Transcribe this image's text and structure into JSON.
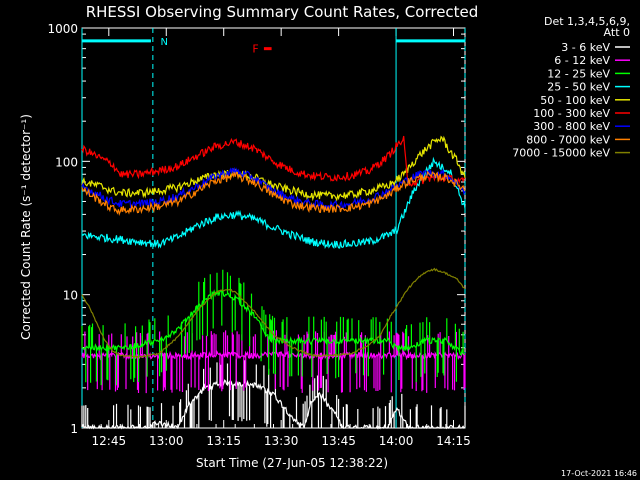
{
  "chart_data": {
    "type": "line",
    "title": "RHESSI Observing Summary Count Rates, Corrected",
    "xlabel": "Start Time (27-Jun-05 12:38:22)",
    "ylabel": "Corrected Count Rate (s⁻¹ detector⁻¹)",
    "yscale": "log",
    "xlim_minutes_after_1238": [
      0,
      100
    ],
    "ylim": [
      1,
      1000
    ],
    "x_ticks": [
      {
        "label": "12:45",
        "minute": 7
      },
      {
        "label": "13:00",
        "minute": 22
      },
      {
        "label": "13:15",
        "minute": 37
      },
      {
        "label": "13:30",
        "minute": 52
      },
      {
        "label": "13:45",
        "minute": 67
      },
      {
        "label": "14:00",
        "minute": 82
      },
      {
        "label": "14:15",
        "minute": 97
      }
    ],
    "y_ticks": [
      {
        "label": "1",
        "value": 1
      },
      {
        "label": "10",
        "value": 10
      },
      {
        "label": "100",
        "value": 100
      },
      {
        "label": "1000",
        "value": 1000
      }
    ],
    "legend_header": [
      "Det 1,3,4,5,6,9,",
      "Att 0"
    ],
    "annotations": [
      {
        "text": "N",
        "color": "#00ffff"
      },
      {
        "text": "F",
        "color": "#ff0000"
      }
    ],
    "series": [
      {
        "name": "3 - 6 keV",
        "color": "#ffffff",
        "style": "spiky",
        "x": [
          0,
          15,
          17,
          20,
          25,
          28,
          32,
          38,
          45,
          50,
          55,
          58,
          60,
          62,
          64,
          66,
          68,
          70,
          76,
          80,
          82,
          84,
          85,
          90,
          95,
          100
        ],
        "y": [
          1,
          1,
          1,
          1.1,
          1,
          1.5,
          2,
          2.2,
          2.1,
          1.8,
          1.2,
          1,
          1.6,
          1.8,
          1.5,
          1.3,
          1,
          1,
          1,
          1,
          1.4,
          1.2,
          1,
          1,
          1,
          1
        ]
      },
      {
        "name": "6 - 12 keV",
        "color": "#ff00ff",
        "style": "spiky",
        "x": [
          0,
          10,
          14,
          15,
          20,
          25,
          30,
          35,
          40,
          45,
          50,
          55,
          60,
          65,
          70,
          75,
          80,
          83,
          85,
          90,
          95,
          100
        ],
        "y": [
          3.5,
          3.5,
          3.5,
          3.4,
          3.5,
          3.5,
          3.5,
          3.6,
          3.5,
          3.5,
          3.6,
          3.5,
          3.5,
          3.5,
          3.5,
          3.5,
          3.5,
          3.5,
          3.5,
          3.5,
          3.5,
          3.5
        ]
      },
      {
        "name": "12 - 25 keV",
        "color": "#00ff00",
        "style": "spiky",
        "x": [
          0,
          5,
          10,
          15,
          20,
          25,
          30,
          35,
          40,
          45,
          48,
          50,
          55,
          60,
          65,
          70,
          75,
          80,
          82,
          85,
          90,
          95,
          100
        ],
        "y": [
          4,
          4,
          4,
          4.2,
          4.5,
          5.5,
          8,
          10.5,
          9.5,
          7,
          5,
          4.5,
          4.5,
          4.5,
          4.5,
          4.5,
          4.5,
          4.5,
          4,
          4,
          4.5,
          4.5,
          3.5
        ]
      },
      {
        "name": "25 - 50 keV",
        "color": "#00ffff",
        "style": "noisy",
        "x": [
          0,
          5,
          10,
          15,
          20,
          25,
          30,
          35,
          40,
          45,
          50,
          55,
          60,
          65,
          70,
          75,
          80,
          82,
          84,
          86,
          88,
          90,
          92,
          94,
          96,
          100
        ],
        "y": [
          28,
          27,
          26,
          25,
          24,
          27,
          33,
          38,
          40,
          37,
          32,
          28,
          25,
          24,
          24,
          25,
          28,
          30,
          40,
          55,
          70,
          85,
          100,
          90,
          85,
          45
        ]
      },
      {
        "name": "50 - 100 keV",
        "color": "#e6e600",
        "style": "noisy",
        "x": [
          0,
          5,
          8,
          10,
          15,
          20,
          25,
          30,
          35,
          40,
          45,
          50,
          55,
          60,
          65,
          70,
          75,
          80,
          82,
          84,
          86,
          88,
          90,
          92,
          94,
          96,
          98,
          100
        ],
        "y": [
          70,
          65,
          60,
          58,
          58,
          60,
          64,
          72,
          80,
          82,
          76,
          66,
          60,
          56,
          55,
          56,
          60,
          66,
          72,
          80,
          95,
          110,
          125,
          140,
          150,
          120,
          100,
          75
        ]
      },
      {
        "name": "100 - 300 keV",
        "color": "#ff0000",
        "style": "noisy",
        "x": [
          0,
          5,
          8,
          10,
          15,
          20,
          25,
          30,
          35,
          40,
          45,
          50,
          55,
          60,
          65,
          70,
          75,
          80,
          82,
          84,
          85,
          88,
          90,
          95,
          100
        ],
        "y": [
          125,
          105,
          95,
          80,
          80,
          85,
          92,
          110,
          130,
          140,
          125,
          100,
          85,
          78,
          76,
          78,
          85,
          110,
          130,
          145,
          70,
          70,
          75,
          75,
          70
        ]
      },
      {
        "name": "300 - 800 keV",
        "color": "#0000ff",
        "style": "noisy",
        "x": [
          0,
          5,
          8,
          10,
          15,
          20,
          25,
          30,
          35,
          40,
          45,
          50,
          55,
          60,
          65,
          70,
          75,
          80,
          82,
          84,
          86,
          88,
          90,
          95,
          100
        ],
        "y": [
          65,
          55,
          50,
          48,
          48,
          50,
          55,
          65,
          78,
          85,
          75,
          60,
          52,
          48,
          47,
          48,
          52,
          60,
          65,
          70,
          75,
          80,
          82,
          80,
          60
        ]
      },
      {
        "name": "800 - 7000 keV",
        "color": "#ff8000",
        "style": "noisy",
        "x": [
          0,
          5,
          8,
          10,
          15,
          20,
          25,
          30,
          35,
          40,
          45,
          50,
          55,
          60,
          65,
          70,
          75,
          80,
          82,
          84,
          86,
          88,
          90,
          95,
          100
        ],
        "y": [
          62,
          50,
          44,
          43,
          44,
          46,
          50,
          60,
          72,
          78,
          70,
          56,
          48,
          45,
          44,
          45,
          48,
          56,
          62,
          68,
          72,
          75,
          78,
          76,
          62
        ]
      },
      {
        "name": "7000 - 15000 keV",
        "color": "#808000",
        "style": "smooth",
        "x": [
          0,
          2,
          4,
          6,
          8,
          10,
          15,
          20,
          25,
          30,
          35,
          38,
          40,
          45,
          50,
          55,
          60,
          65,
          70,
          75,
          78,
          80,
          82,
          85,
          88,
          90,
          92,
          95,
          98,
          100
        ],
        "y": [
          10,
          8,
          6,
          4.5,
          3.8,
          3.5,
          3.4,
          3.6,
          4.8,
          7.5,
          10.5,
          11,
          10.5,
          7.5,
          5,
          4,
          3.5,
          3.5,
          3.6,
          4.2,
          5,
          6.5,
          8,
          11,
          13.5,
          15,
          15.5,
          14.5,
          13,
          11
        ]
      }
    ]
  },
  "footer": {
    "date": "17-Oct-2021 16:46"
  }
}
